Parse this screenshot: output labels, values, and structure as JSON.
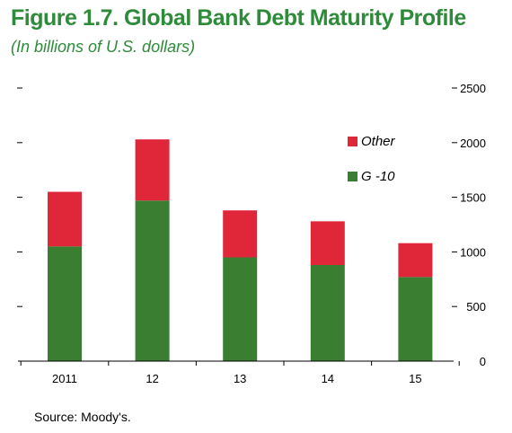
{
  "title": "Figure 1.7. Global Bank Debt Maturity Profile",
  "subtitle": "(In billions of U.S. dollars)",
  "source": "Source: Moody's.",
  "colors": {
    "title": "#2e8b3a",
    "other": "#e0273a",
    "g10": "#3a7e32",
    "axis": "#000000"
  },
  "chart_data": {
    "type": "bar",
    "stacked": true,
    "categories": [
      "2011",
      "12",
      "13",
      "14",
      "15"
    ],
    "series": [
      {
        "name": "G -10",
        "color": "#3a7e32",
        "values": [
          1050,
          1470,
          950,
          880,
          770
        ]
      },
      {
        "name": "Other",
        "color": "#e0273a",
        "values": [
          500,
          560,
          430,
          400,
          310
        ]
      }
    ],
    "ylim": [
      0,
      2500
    ],
    "y_ticks": [
      0,
      500,
      1000,
      1500,
      2000,
      2500
    ],
    "y_tick_labels": [
      "0",
      "500",
      "1000",
      "1500",
      "2000",
      "2500"
    ],
    "y_axis_side": "right",
    "grid": false,
    "legend": {
      "placement": "top-right",
      "entries": [
        "Other",
        "G -10"
      ]
    }
  }
}
